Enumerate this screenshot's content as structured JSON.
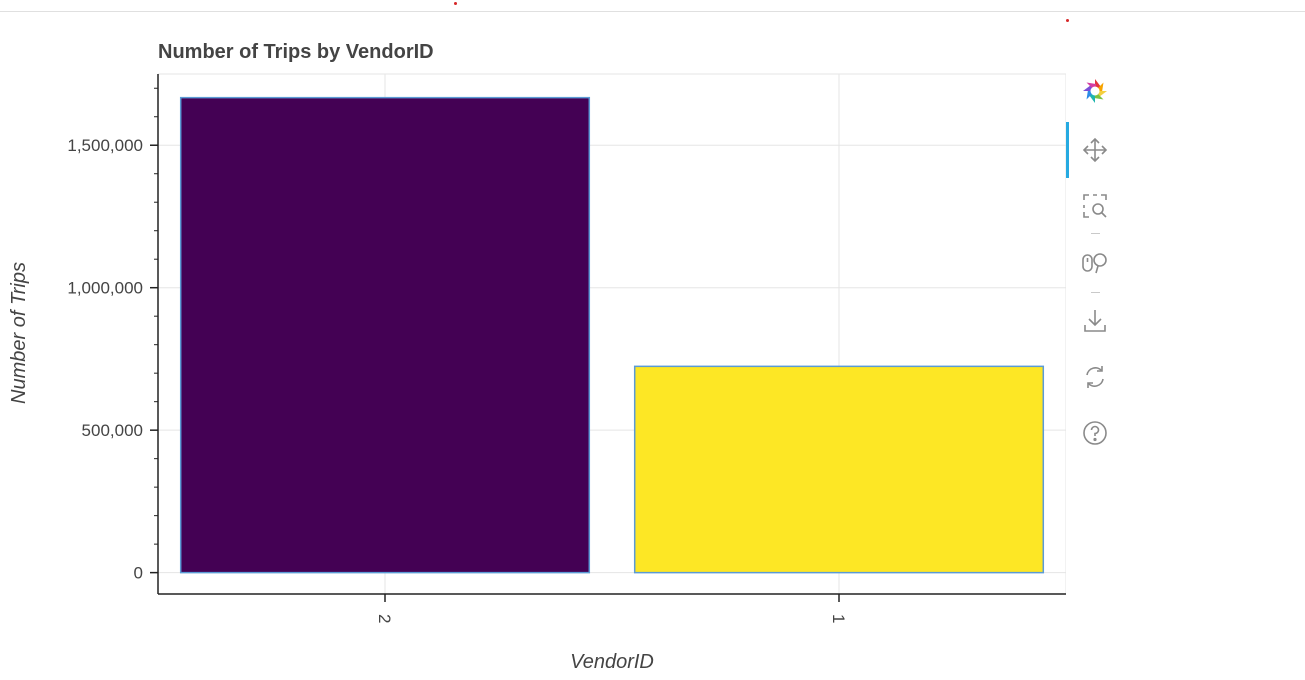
{
  "chart_data": {
    "type": "bar",
    "title": "Number of Trips by VendorID",
    "xlabel": "VendorID",
    "ylabel": "Number of Trips",
    "categories": [
      "2",
      "1"
    ],
    "values": [
      1667000,
      724000
    ],
    "bar_colors": [
      "#440154",
      "#fde725"
    ],
    "bar_outline_color": "#5b9bd5",
    "ylim": [
      -75000,
      1750000
    ],
    "yticks": [
      0,
      500000,
      1000000,
      1500000
    ],
    "ytick_labels": [
      "0",
      "500,000",
      "1,000,000",
      "1,500,000"
    ],
    "grid": true,
    "x_tick_rotation": "vertical"
  },
  "toolbar": {
    "logo": "bokeh-logo-icon",
    "tools": [
      "pan-icon",
      "box-zoom-icon",
      "wheel-zoom-icon",
      "save-icon",
      "reset-icon",
      "help-icon"
    ],
    "active_tool": "pan-icon",
    "active_color": "#26aae1"
  }
}
